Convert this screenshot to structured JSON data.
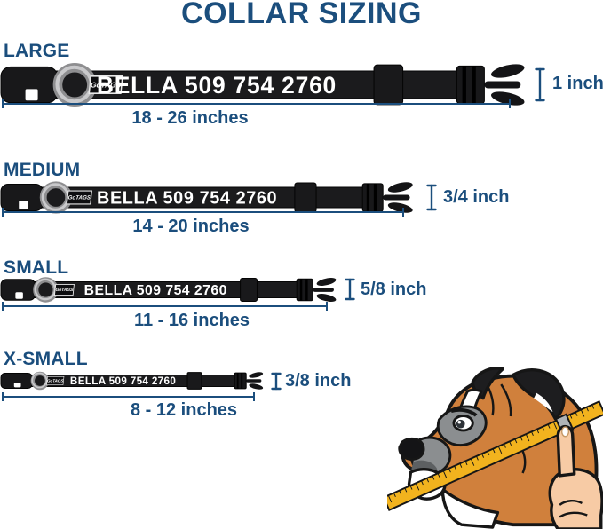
{
  "title": "COLLAR SIZING",
  "brand_label": "GoTAGS",
  "collar_text": "BELLA 509 754 2760",
  "colors": {
    "accent": "#1b4e7d",
    "collar": "#1b1b1d",
    "tape": "#f2b31e"
  },
  "sizes": [
    {
      "label": "LARGE",
      "range": "18 - 26 inches",
      "width": "1 inch"
    },
    {
      "label": "MEDIUM",
      "range": "14 - 20 inches",
      "width": "3/4 inch"
    },
    {
      "label": "SMALL",
      "range": "11 - 16 inches",
      "width": "5/8 inch"
    },
    {
      "label": "X-SMALL",
      "range": "8 - 12 inches",
      "width": "3/8 inch"
    }
  ]
}
